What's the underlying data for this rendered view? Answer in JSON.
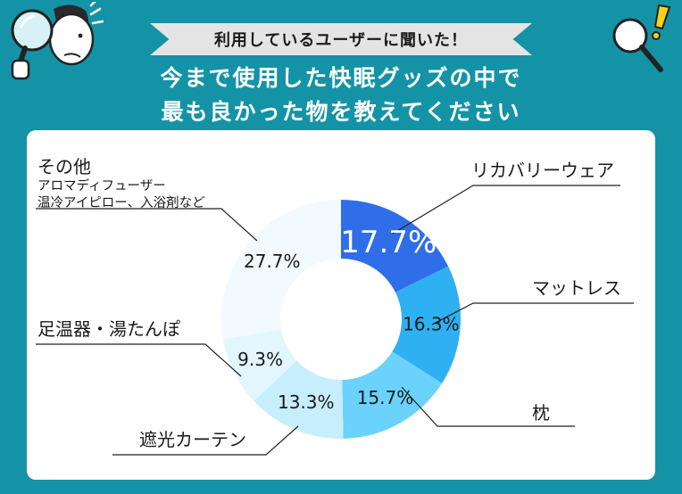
{
  "banner": {
    "text": "利用しているユーザーに聞いた！"
  },
  "headline": {
    "line1": "今まで使用した快眠グッズの中で",
    "line2": "最も良かった物を教えてください"
  },
  "colors": {
    "background": "#1593a6",
    "card": "#ffffff",
    "slices": [
      "#2f6ee8",
      "#2fb0f2",
      "#6bd2fb",
      "#c7eefd",
      "#e2f6fe",
      "#f1fafe"
    ]
  },
  "chart_data": {
    "type": "pie",
    "style": "donut",
    "title": "今まで使用した快眠グッズの中で最も良かった物を教えてください",
    "slices": [
      {
        "label": "リカバリーウェア",
        "value": 17.7,
        "value_label": "17.7%"
      },
      {
        "label": "マットレス",
        "value": 16.3,
        "value_label": "16.3%"
      },
      {
        "label": "枕",
        "value": 15.7,
        "value_label": "15.7%"
      },
      {
        "label": "遮光カーテン",
        "value": 13.3,
        "value_label": "13.3%"
      },
      {
        "label": "足温器・湯たんぽ",
        "value": 9.3,
        "value_label": "9.3%"
      },
      {
        "label": "その他",
        "sublabel_lines": [
          "アロマディフューザー",
          "温冷アイピロー、入浴剤など"
        ],
        "value": 27.7,
        "value_label": "27.7%"
      }
    ]
  }
}
